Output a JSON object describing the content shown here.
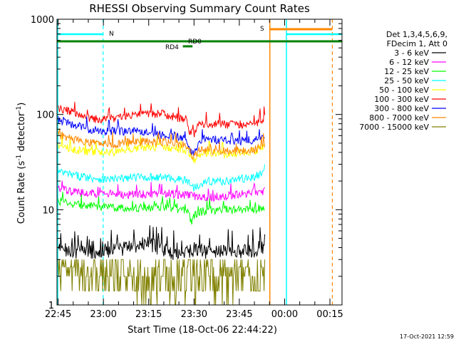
{
  "chart_data": {
    "type": "line",
    "title": "RHESSI Observing Summary Count Rates",
    "xlabel": "Start Time (18-Oct-06 22:44:22)",
    "ylabel": "Count Rate (s",
    "ylabel_sup1": "-1",
    "ylabel_mid": " detector",
    "ylabel_sup2": "-1",
    "ylabel_end": ")",
    "y_scale": "log",
    "ylim": [
      1,
      1000
    ],
    "y_ticks": [
      "1",
      "10",
      "100",
      "1000"
    ],
    "x_ticks": [
      "22:45",
      "23:00",
      "23:15",
      "23:30",
      "23:45",
      "00:00",
      "00:15"
    ],
    "x_range_minutes": [
      -0.37,
      94
    ],
    "grid": false,
    "legend_position": "right",
    "legend_header": [
      "Det 1,3,4,5,6,9,",
      "FDecim 1, Att 0"
    ],
    "series": [
      {
        "name": "3 - 6 keV",
        "color": "#000000",
        "x": [
          0,
          10,
          20,
          30,
          35,
          40,
          45,
          50,
          55,
          60,
          65,
          68.5
        ],
        "y": [
          3.9,
          3.6,
          3.9,
          4.5,
          3.8,
          3.5,
          3.9,
          3.5,
          3.9,
          3.6,
          3.8,
          4.0
        ]
      },
      {
        "name": "6 - 12 keV",
        "color": "#ff00ff",
        "x": [
          0,
          5,
          10,
          20,
          30,
          35,
          40,
          45,
          50,
          55,
          60,
          65,
          68.5
        ],
        "y": [
          16.5,
          15.5,
          15.0,
          14.5,
          14.5,
          15.0,
          14.5,
          14.0,
          13.5,
          14.0,
          14.5,
          15.0,
          16.0
        ]
      },
      {
        "name": "12 - 25 keV",
        "color": "#00ff00",
        "x": [
          0,
          5,
          10,
          20,
          30,
          35,
          40,
          43,
          44,
          45,
          47,
          50,
          55,
          60,
          65,
          68.5
        ],
        "y": [
          12.5,
          11.5,
          11.0,
          10.5,
          10.5,
          11.0,
          10.0,
          9.5,
          7.5,
          8.5,
          9.5,
          10.0,
          10.0,
          10.0,
          10.0,
          11.0
        ]
      },
      {
        "name": "25 - 50 keV",
        "color": "#00ffff",
        "x": [
          0,
          5,
          10,
          15,
          20,
          25,
          30,
          35,
          40,
          43,
          45,
          47,
          50,
          55,
          60,
          65,
          68,
          69
        ],
        "y": [
          25,
          23,
          22,
          21,
          21,
          22,
          22,
          22,
          21,
          20,
          17,
          19,
          20,
          20,
          21,
          22,
          25,
          33
        ]
      },
      {
        "name": "50 - 100 keV",
        "color": "#ffff00",
        "x": [
          0,
          5,
          10,
          15,
          20,
          25,
          30,
          35,
          40,
          43,
          44,
          45,
          47,
          50,
          55,
          60,
          65,
          68.5
        ],
        "y": [
          47,
          43,
          41,
          40,
          41,
          44,
          46,
          46,
          44,
          42,
          36,
          33,
          38,
          40,
          39,
          40,
          41,
          46
        ]
      },
      {
        "name": "100 - 300 keV",
        "color": "#ff0000",
        "x": [
          0,
          5,
          10,
          15,
          20,
          25,
          30,
          35,
          40,
          42.5,
          43.5,
          45,
          47,
          50,
          55,
          60,
          65,
          68.5
        ],
        "y": [
          117,
          105,
          92,
          88,
          92,
          100,
          103,
          101,
          92,
          89,
          67,
          62,
          81,
          80,
          79,
          79,
          79,
          95
        ]
      },
      {
        "name": "300 - 800 keV",
        "color": "#0000ff",
        "x": [
          0,
          5,
          10,
          15,
          20,
          25,
          30,
          35,
          40,
          42.5,
          43.5,
          45,
          47,
          50,
          55,
          60,
          65,
          68.5
        ],
        "y": [
          90,
          78,
          70,
          67,
          67,
          67,
          64,
          61,
          59,
          55,
          42,
          40,
          55,
          55,
          54,
          53,
          54,
          61
        ]
      },
      {
        "name": "800 - 7000 keV",
        "color": "#ff8800",
        "x": [
          0,
          5,
          10,
          15,
          20,
          25,
          30,
          35,
          40,
          43,
          44,
          45,
          47,
          50,
          55,
          60,
          65,
          68.5
        ],
        "y": [
          62,
          55,
          51,
          49,
          49,
          52,
          52,
          52,
          49,
          46,
          39,
          36,
          43,
          42,
          41,
          42,
          43,
          48
        ]
      },
      {
        "name": "7000 - 15000 keV",
        "color": "#808000",
        "x": [
          0,
          10,
          20,
          30,
          35,
          40,
          45,
          50,
          55,
          60,
          65,
          68.5
        ],
        "y": [
          2.5,
          2.2,
          2.5,
          2.3,
          2.4,
          2.5,
          2.3,
          2.4,
          2.5,
          2.4,
          2.5,
          2.6
        ]
      }
    ],
    "annotations": [
      {
        "label": "N",
        "color": "#00ffff"
      },
      {
        "label": "S",
        "color": "#ff8800"
      },
      {
        "label": "RD0",
        "color": "#008000"
      },
      {
        "label": "RD4",
        "color": "#008000"
      }
    ],
    "timestamp": "17-Oct-2021 12:59"
  }
}
